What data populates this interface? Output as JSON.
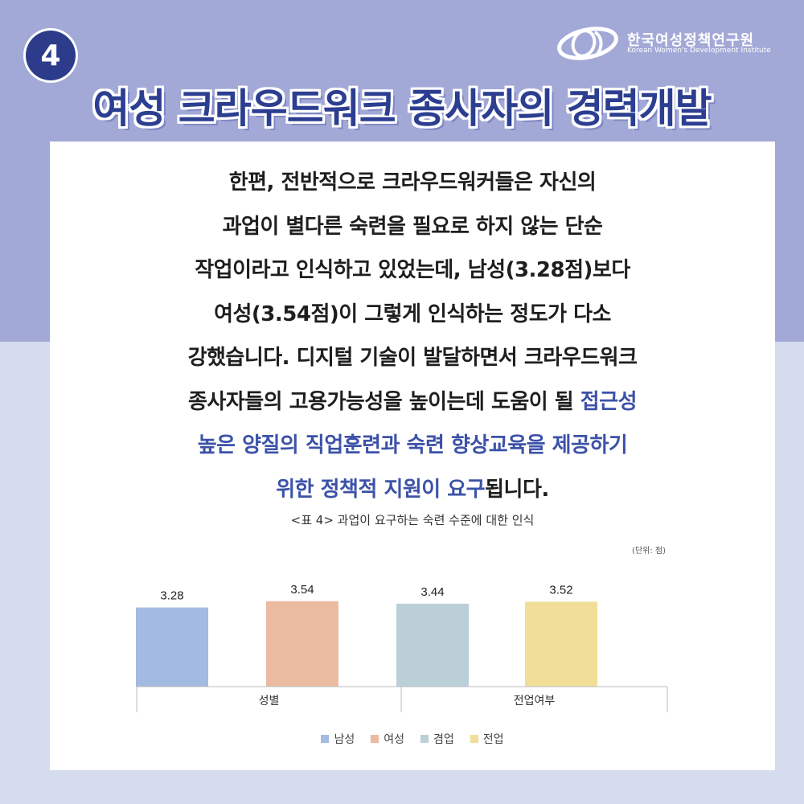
{
  "badge": {
    "number": "4"
  },
  "logo": {
    "name": "한국여성정책연구원",
    "subtitle": "Korean Women's Development Institute"
  },
  "header": {
    "title": "여성 크라우드워크 종사자의 경력개발"
  },
  "body": {
    "lines": [
      "한편, 전반적으로 크라우드워커들은 자신의",
      "과업이 별다른 숙련을 필요로 하지 않는 단순",
      "작업이라고 인식하고 있었는데, 남성(3.28점)보다",
      "여성(3.54점)이 그렇게 인식하는 정도가 다소",
      "강했습니다. 디지털 기술이 발달하면서 크라우드워크"
    ],
    "line6_plain": "종사자들의 고용가능성을 높이는데 도움이 될 ",
    "line6_highlight": "접근성",
    "line7_highlight": "높은 양질의 직업훈련과 숙련 향상교육을 제공하기",
    "line8_highlight": "위한 정책적 지원이 요구",
    "line8_plain": "됩니다.",
    "highlight_color": "#3c52a8"
  },
  "chart_data": {
    "type": "bar",
    "title": "<표 4> 과업이 요구하는 숙련 수준에 대한 인식",
    "unit_note": "(단위: 점)",
    "groups": [
      "성별",
      "전업여부"
    ],
    "bars": [
      {
        "group": "성별",
        "name": "남성",
        "value": 3.28,
        "label": "3.28",
        "color": "#a3bae2"
      },
      {
        "group": "성별",
        "name": "여성",
        "value": 3.54,
        "label": "3.54",
        "color": "#ebbba1"
      },
      {
        "group": "전업여부",
        "name": "겸업",
        "value": 3.44,
        "label": "3.44",
        "color": "#bbcfd9"
      },
      {
        "group": "전업여부",
        "name": "전업",
        "value": 3.52,
        "label": "3.52",
        "color": "#f1df99"
      }
    ],
    "legend": [
      {
        "name": "남성",
        "color": "#a3bae2"
      },
      {
        "name": "여성",
        "color": "#ebbba1"
      },
      {
        "name": "겸업",
        "color": "#bbcfd9"
      },
      {
        "name": "전업",
        "color": "#f1df99"
      }
    ],
    "legend_placement": "bottom-center",
    "grid": false
  }
}
